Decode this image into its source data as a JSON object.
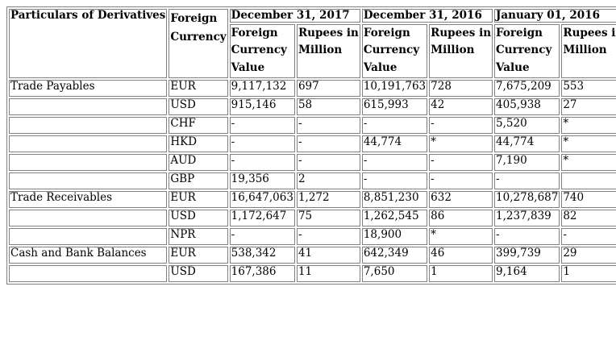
{
  "table": {
    "header_particulars": "Particulars of Derivatives",
    "header_foreign_currency": [
      "Foreign",
      "Currency"
    ],
    "periods": [
      "December 31, 2017",
      "December 31, 2016",
      "January 01, 2016"
    ],
    "sub_fc_value": [
      "Foreign",
      "Currency",
      "Value"
    ],
    "sub_rupees": [
      "Rupees in",
      "Million"
    ],
    "rows": [
      {
        "particular": "Trade Payables",
        "currency": "EUR",
        "cells": [
          "9,117,132",
          "697",
          "10,191,763",
          "728",
          "7,675,209",
          "553"
        ]
      },
      {
        "particular": "",
        "currency": "USD",
        "cells": [
          "915,146",
          "58",
          "615,993",
          "42",
          "405,938",
          "27"
        ]
      },
      {
        "particular": "",
        "currency": "CHF",
        "cells": [
          "-",
          "-",
          "-",
          "-",
          "5,520",
          "*"
        ]
      },
      {
        "particular": "",
        "currency": "HKD",
        "cells": [
          "-",
          "-",
          "44,774",
          "*",
          "44,774",
          "*"
        ]
      },
      {
        "particular": "",
        "currency": "AUD",
        "cells": [
          "-",
          "-",
          "-",
          "-",
          "7,190",
          "*"
        ]
      },
      {
        "particular": "",
        "currency": "GBP",
        "cells": [
          "19,356",
          "2",
          "-",
          "-",
          "-",
          ""
        ]
      },
      {
        "particular": "Trade Receivables",
        "currency": "EUR",
        "cells": [
          "16,647,063",
          "1,272",
          "8,851,230",
          "632",
          "10,278,687",
          "740"
        ]
      },
      {
        "particular": "",
        "currency": "USD",
        "cells": [
          "1,172,647",
          "75",
          "1,262,545",
          "86",
          "1,237,839",
          "82"
        ]
      },
      {
        "particular": "",
        "currency": "NPR",
        "cells": [
          "-",
          "-",
          "18,900",
          "*",
          "-",
          "-"
        ]
      },
      {
        "particular": "Cash and Bank Balances",
        "currency": "EUR",
        "cells": [
          "538,342",
          "41",
          "642,349",
          "46",
          "399,739",
          "29"
        ]
      },
      {
        "particular": "",
        "currency": "USD",
        "cells": [
          "167,386",
          "11",
          "7,650",
          "1",
          "9,164",
          "1"
        ]
      }
    ]
  }
}
